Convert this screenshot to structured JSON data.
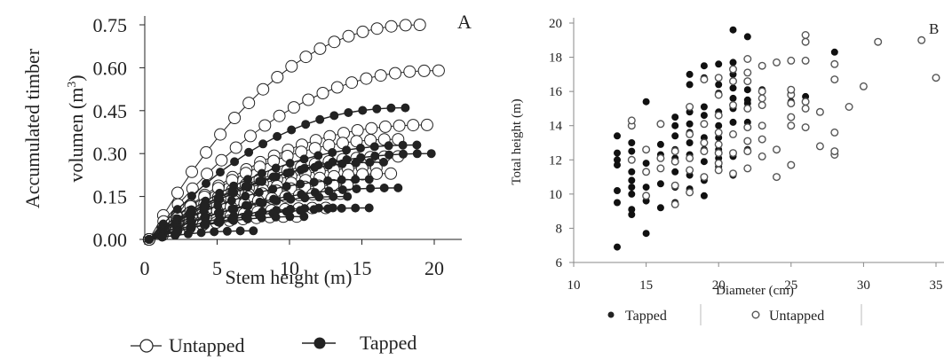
{
  "chart_data": [
    {
      "panel_label": "A",
      "type": "line",
      "ylabel_line1": "Accumulated timber",
      "ylabel_line2": "volumen (m",
      "ylabel_sup": "3",
      "ylabel_close": ")",
      "xlabel": "Stem height (m)",
      "xlim": [
        0,
        22
      ],
      "ylim": [
        0,
        0.75
      ],
      "xticks": [
        "0",
        "5",
        "10",
        "15",
        "20"
      ],
      "yticks": [
        "0.00",
        "0.15",
        "0.30",
        "0.45",
        "0.60",
        "0.75"
      ],
      "legend": [
        {
          "label": "Untapped",
          "marker": "open-circle"
        },
        {
          "label": "Tapped",
          "marker": "filled-circle"
        }
      ],
      "series": [
        {
          "group": "Untapped",
          "h": 19,
          "v": 0.75
        },
        {
          "group": "Untapped",
          "h": 20.3,
          "v": 0.59
        },
        {
          "group": "Untapped",
          "h": 19.5,
          "v": 0.4
        },
        {
          "group": "Untapped",
          "h": 17.5,
          "v": 0.35
        },
        {
          "group": "Untapped",
          "h": 17.5,
          "v": 0.29
        },
        {
          "group": "Untapped",
          "h": 16,
          "v": 0.25
        },
        {
          "group": "Untapped",
          "h": 17,
          "v": 0.23
        },
        {
          "group": "Untapped",
          "h": 14,
          "v": 0.19
        },
        {
          "group": "Untapped",
          "h": 13.5,
          "v": 0.16
        },
        {
          "group": "Untapped",
          "h": 12.5,
          "v": 0.11
        },
        {
          "group": "Untapped",
          "h": 10.5,
          "v": 0.08
        },
        {
          "group": "Tapped",
          "h": 18,
          "v": 0.46
        },
        {
          "group": "Tapped",
          "h": 19.8,
          "v": 0.3
        },
        {
          "group": "Tapped",
          "h": 18.8,
          "v": 0.33
        },
        {
          "group": "Tapped",
          "h": 16.5,
          "v": 0.27
        },
        {
          "group": "Tapped",
          "h": 15.5,
          "v": 0.21
        },
        {
          "group": "Tapped",
          "h": 17.5,
          "v": 0.18
        },
        {
          "group": "Tapped",
          "h": 14,
          "v": 0.15
        },
        {
          "group": "Tapped",
          "h": 13,
          "v": 0.11
        },
        {
          "group": "Tapped",
          "h": 15.5,
          "v": 0.11
        },
        {
          "group": "Tapped",
          "h": 11,
          "v": 0.08
        },
        {
          "group": "Tapped",
          "h": 7.5,
          "v": 0.03
        }
      ]
    },
    {
      "panel_label": "B",
      "type": "scatter",
      "xlabel": "Diameter (cm)",
      "ylabel": "Total height (m)",
      "xlim": [
        10,
        35
      ],
      "ylim": [
        6,
        20
      ],
      "xticks": [
        "10",
        "15",
        "20",
        "25",
        "30",
        "35"
      ],
      "yticks": [
        "6",
        "8",
        "10",
        "12",
        "14",
        "16",
        "18",
        "20"
      ],
      "legend": [
        {
          "label": "Tapped",
          "marker": "filled-circle"
        },
        {
          "label": "Untapped",
          "marker": "open-circle"
        }
      ],
      "series": [
        {
          "name": "Tapped",
          "points": [
            [
              13,
              6.9
            ],
            [
              13,
              9.5
            ],
            [
              13,
              10.2
            ],
            [
              13,
              11.7
            ],
            [
              13,
              12.0
            ],
            [
              13,
              12.4
            ],
            [
              13,
              13.4
            ],
            [
              14,
              8.8
            ],
            [
              14,
              9.1
            ],
            [
              14,
              10.0
            ],
            [
              14,
              10.4
            ],
            [
              14,
              10.8
            ],
            [
              14,
              11.3
            ],
            [
              14,
              12.0
            ],
            [
              14,
              12.5
            ],
            [
              14,
              13.0
            ],
            [
              15,
              7.7
            ],
            [
              15,
              9.6
            ],
            [
              15,
              10.4
            ],
            [
              15,
              11.3
            ],
            [
              15,
              11.8
            ],
            [
              15,
              12.6
            ],
            [
              15,
              15.4
            ],
            [
              16,
              9.2
            ],
            [
              16,
              10.6
            ],
            [
              16,
              11.5
            ],
            [
              16,
              12.3
            ],
            [
              16,
              12.9
            ],
            [
              17,
              9.5
            ],
            [
              17,
              10.4
            ],
            [
              17,
              11.3
            ],
            [
              17,
              12.1
            ],
            [
              17,
              12.6
            ],
            [
              17,
              13.4
            ],
            [
              17,
              14.0
            ],
            [
              17,
              14.5
            ],
            [
              18,
              10.3
            ],
            [
              18,
              11.1
            ],
            [
              18,
              12.3
            ],
            [
              18,
              13.0
            ],
            [
              18,
              13.6
            ],
            [
              18,
              14.1
            ],
            [
              18,
              14.8
            ],
            [
              18,
              16.4
            ],
            [
              18,
              17.0
            ],
            [
              19,
              9.9
            ],
            [
              19,
              10.8
            ],
            [
              19,
              11.9
            ],
            [
              19,
              12.6
            ],
            [
              19,
              13.3
            ],
            [
              19,
              14.1
            ],
            [
              19,
              14.6
            ],
            [
              19,
              15.1
            ],
            [
              19,
              16.8
            ],
            [
              19,
              17.5
            ],
            [
              20,
              11.6
            ],
            [
              20,
              12.1
            ],
            [
              20,
              12.6
            ],
            [
              20,
              13.3
            ],
            [
              20,
              14.0
            ],
            [
              20,
              14.8
            ],
            [
              20,
              15.9
            ],
            [
              20,
              16.4
            ],
            [
              20,
              17.6
            ],
            [
              21,
              11.1
            ],
            [
              21,
              12.2
            ],
            [
              21,
              14.2
            ],
            [
              21,
              15.0
            ],
            [
              21,
              15.6
            ],
            [
              21,
              16.2
            ],
            [
              21,
              17.0
            ],
            [
              21,
              17.7
            ],
            [
              21,
              19.6
            ],
            [
              22,
              12.6
            ],
            [
              22,
              14.2
            ],
            [
              22,
              15.3
            ],
            [
              22,
              15.5
            ],
            [
              22,
              16.1
            ],
            [
              22,
              19.2
            ],
            [
              23,
              15.6
            ],
            [
              23,
              16.1
            ],
            [
              25,
              15.4
            ],
            [
              25,
              15.9
            ],
            [
              26,
              15.7
            ],
            [
              28,
              18.3
            ]
          ]
        },
        {
          "name": "Untapped",
          "points": [
            [
              14,
              12.0
            ],
            [
              14,
              14.0
            ],
            [
              14,
              14.3
            ],
            [
              15,
              9.9
            ],
            [
              15,
              11.3
            ],
            [
              15,
              12.6
            ],
            [
              16,
              11.5
            ],
            [
              16,
              12.1
            ],
            [
              16,
              14.1
            ],
            [
              17,
              9.4
            ],
            [
              17,
              10.5
            ],
            [
              17,
              11.9
            ],
            [
              17,
              12.5
            ],
            [
              18,
              10.1
            ],
            [
              18,
              11.4
            ],
            [
              18,
              12.1
            ],
            [
              18,
              13.5
            ],
            [
              18,
              15.1
            ],
            [
              19,
              11.0
            ],
            [
              19,
              12.5
            ],
            [
              19,
              13.0
            ],
            [
              19,
              14.1
            ],
            [
              19,
              16.7
            ],
            [
              20,
              11.4
            ],
            [
              20,
              11.8
            ],
            [
              20,
              12.4
            ],
            [
              20,
              12.9
            ],
            [
              20,
              13.6
            ],
            [
              20,
              14.6
            ],
            [
              20,
              15.8
            ],
            [
              20,
              16.8
            ],
            [
              21,
              11.2
            ],
            [
              21,
              12.4
            ],
            [
              21,
              13.5
            ],
            [
              21,
              15.2
            ],
            [
              21,
              16.6
            ],
            [
              21,
              17.3
            ],
            [
              22,
              11.5
            ],
            [
              22,
              12.5
            ],
            [
              22,
              13.1
            ],
            [
              22,
              13.9
            ],
            [
              22,
              15.0
            ],
            [
              22,
              16.6
            ],
            [
              22,
              17.1
            ],
            [
              22,
              17.9
            ],
            [
              23,
              12.2
            ],
            [
              23,
              13.2
            ],
            [
              23,
              14.0
            ],
            [
              23,
              15.2
            ],
            [
              23,
              15.6
            ],
            [
              23,
              16.0
            ],
            [
              23,
              17.5
            ],
            [
              24,
              11.0
            ],
            [
              24,
              12.6
            ],
            [
              24,
              17.7
            ],
            [
              25,
              11.7
            ],
            [
              25,
              14.0
            ],
            [
              25,
              14.5
            ],
            [
              25,
              15.3
            ],
            [
              25,
              15.8
            ],
            [
              25,
              16.1
            ],
            [
              25,
              17.8
            ],
            [
              26,
              13.9
            ],
            [
              26,
              15.0
            ],
            [
              26,
              15.4
            ],
            [
              26,
              17.8
            ],
            [
              26,
              18.9
            ],
            [
              26,
              19.3
            ],
            [
              27,
              12.8
            ],
            [
              27,
              14.8
            ],
            [
              28,
              12.3
            ],
            [
              28,
              12.5
            ],
            [
              28,
              13.6
            ],
            [
              28,
              16.7
            ],
            [
              28,
              17.6
            ],
            [
              29,
              15.1
            ],
            [
              30,
              16.3
            ],
            [
              31,
              18.9
            ],
            [
              34,
              19.0
            ],
            [
              35,
              16.8
            ]
          ]
        }
      ]
    }
  ]
}
